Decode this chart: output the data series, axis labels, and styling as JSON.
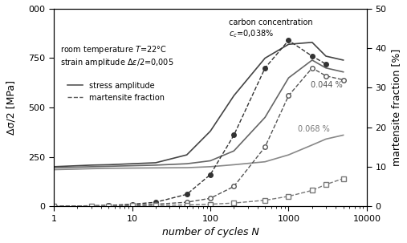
{
  "title_left": "Δσ/2 [MPa]",
  "title_right": "martensite fraction [%]",
  "xlabel": "number of cycles Ν",
  "annotation_box": "room temperature Τ=22°C\nstrain amplitude Δε/2=0,005",
  "annotation_cc": "carbon concentration\nγᴄ=0,038%",
  "ylim_left": [
    0,
    1000
  ],
  "ylim_right": [
    0,
    50
  ],
  "xlim": [
    1,
    10000
  ],
  "stress_038": {
    "x": [
      1,
      2,
      3,
      5,
      10,
      20,
      50,
      100,
      200,
      500,
      1000,
      2000,
      3000,
      5000
    ],
    "y": [
      200,
      205,
      208,
      210,
      215,
      220,
      260,
      380,
      560,
      750,
      820,
      830,
      760,
      740
    ]
  },
  "stress_044": {
    "x": [
      1,
      2,
      3,
      5,
      10,
      20,
      50,
      100,
      200,
      500,
      1000,
      2000,
      3000,
      5000
    ],
    "y": [
      195,
      198,
      200,
      202,
      205,
      208,
      215,
      230,
      280,
      450,
      650,
      740,
      700,
      680
    ]
  },
  "stress_068": {
    "x": [
      1,
      2,
      3,
      5,
      10,
      20,
      50,
      100,
      200,
      500,
      1000,
      2000,
      3000,
      5000
    ],
    "y": [
      185,
      188,
      190,
      192,
      193,
      194,
      195,
      200,
      210,
      225,
      260,
      310,
      340,
      360
    ]
  },
  "mart_038_x": [
    1,
    3,
    5,
    10,
    20,
    50,
    100,
    200,
    500,
    1000,
    2000,
    3000
  ],
  "mart_038_y": [
    0,
    0.1,
    0.2,
    0.5,
    1,
    3,
    8,
    18,
    35,
    42,
    38,
    36
  ],
  "mart_044_x": [
    1,
    3,
    5,
    10,
    20,
    50,
    100,
    200,
    500,
    1000,
    2000,
    3000,
    5000
  ],
  "mart_044_y": [
    0,
    0.1,
    0.2,
    0.3,
    0.5,
    1,
    2,
    5,
    15,
    28,
    35,
    33,
    32
  ],
  "mart_068_x": [
    1,
    3,
    5,
    10,
    20,
    50,
    100,
    200,
    500,
    1000,
    2000,
    3000,
    5000
  ],
  "mart_068_y": [
    0,
    0.05,
    0.1,
    0.15,
    0.2,
    0.3,
    0.5,
    0.8,
    1.5,
    2.5,
    4,
    5.5,
    7
  ],
  "color_038": "#555555",
  "color_044": "#777777",
  "color_068": "#999999",
  "background": "#ffffff"
}
